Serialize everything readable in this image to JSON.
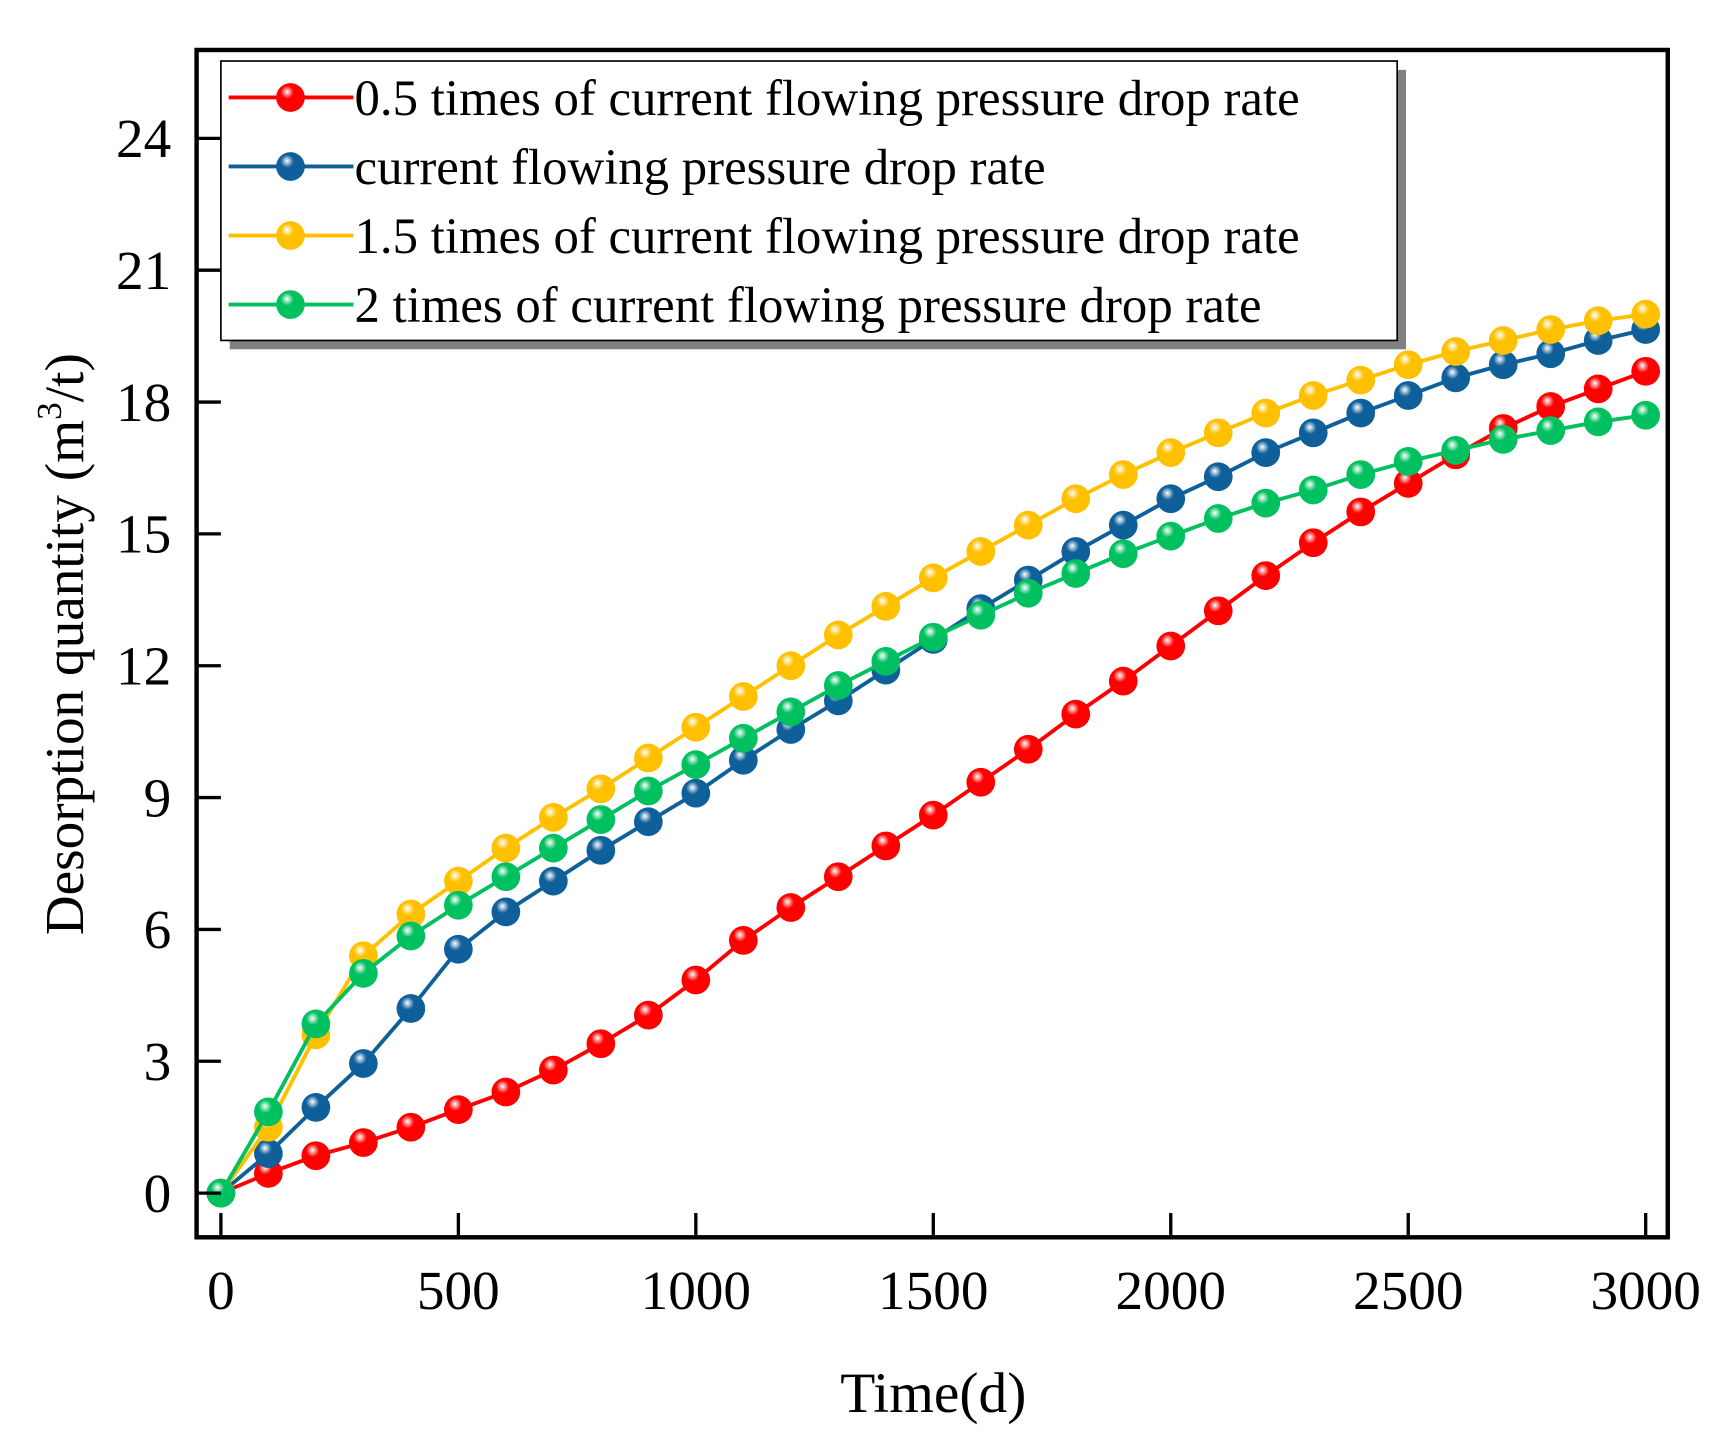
{
  "chart_data": {
    "type": "line",
    "title": "",
    "xlabel": "Time(d)",
    "ylabel_main": "Desorption quantity (m",
    "ylabel_sup": "3",
    "ylabel_tail": "/t)",
    "xlim": [
      -50,
      3050
    ],
    "ylim": [
      -1.0,
      26.0
    ],
    "xticks": [
      "0",
      "500",
      "1000",
      "1500",
      "2000",
      "2500",
      "3000"
    ],
    "xtick_values": [
      0,
      500,
      1000,
      1500,
      2000,
      2500,
      3000
    ],
    "yticks": [
      "0",
      "3",
      "6",
      "9",
      "12",
      "15",
      "18",
      "21",
      "24"
    ],
    "ytick_values": [
      0,
      3,
      6,
      9,
      12,
      15,
      18,
      21,
      24
    ],
    "legend_position": "top-left",
    "x": [
      0,
      100,
      200,
      300,
      400,
      500,
      600,
      700,
      800,
      900,
      1000,
      1100,
      1200,
      1300,
      1400,
      1500,
      1600,
      1700,
      1800,
      1900,
      2000,
      2100,
      2200,
      2300,
      2400,
      2500,
      2600,
      2700,
      2800,
      2900,
      3000
    ],
    "series": [
      {
        "name": "0.5 times of current flowing pressure drop rate",
        "color": "#ff0000",
        "values": [
          0,
          0.45,
          0.85,
          1.15,
          1.5,
          1.9,
          2.3,
          2.8,
          3.4,
          4.05,
          4.85,
          5.75,
          6.5,
          7.2,
          7.9,
          8.6,
          9.35,
          10.1,
          10.9,
          11.65,
          12.45,
          13.25,
          14.05,
          14.8,
          15.5,
          16.15,
          16.8,
          17.4,
          17.9,
          18.3,
          18.7
        ]
      },
      {
        "name": "current flowing pressure drop rate",
        "color": "#0e5f9a",
        "values": [
          0,
          0.9,
          1.95,
          2.95,
          4.2,
          5.55,
          6.4,
          7.1,
          7.8,
          8.45,
          9.1,
          9.85,
          10.55,
          11.2,
          11.9,
          12.6,
          13.3,
          13.95,
          14.6,
          15.2,
          15.8,
          16.3,
          16.85,
          17.3,
          17.75,
          18.15,
          18.55,
          18.85,
          19.1,
          19.4,
          19.65
        ]
      },
      {
        "name": "1.5 times of current flowing pressure drop rate",
        "color": "#ffc000",
        "values": [
          0,
          1.5,
          3.6,
          5.4,
          6.35,
          7.1,
          7.85,
          8.55,
          9.2,
          9.9,
          10.6,
          11.3,
          12.0,
          12.7,
          13.35,
          14.0,
          14.6,
          15.2,
          15.8,
          16.35,
          16.85,
          17.3,
          17.75,
          18.15,
          18.5,
          18.85,
          19.15,
          19.4,
          19.65,
          19.85,
          20.0
        ]
      },
      {
        "name": "2 times of current flowing pressure drop rate",
        "color": "#00c060",
        "values": [
          0,
          1.85,
          3.85,
          5.0,
          5.85,
          6.55,
          7.2,
          7.85,
          8.5,
          9.15,
          9.75,
          10.35,
          10.95,
          11.55,
          12.1,
          12.65,
          13.15,
          13.65,
          14.1,
          14.55,
          14.95,
          15.35,
          15.7,
          16.0,
          16.35,
          16.65,
          16.9,
          17.15,
          17.35,
          17.55,
          17.7
        ]
      }
    ]
  }
}
